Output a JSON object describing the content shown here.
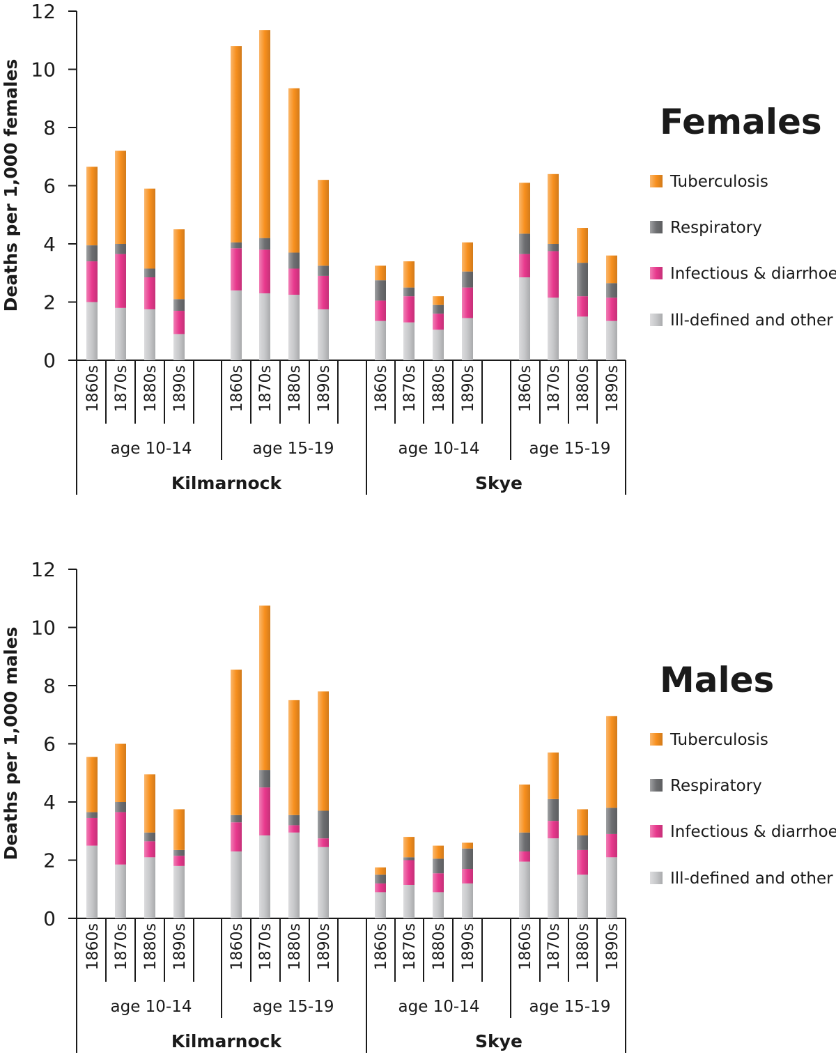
{
  "colors": {
    "Tuberculosis": "#f7901e",
    "Respiratory": "#6d6e71",
    "Infectious & diarrhoea": "#e8398d",
    "Ill-defined and other": "#c7c8ca"
  },
  "chart_data": [
    {
      "type": "bar",
      "stacked": true,
      "title": "Females",
      "ylabel": "Deaths per 1,000 females",
      "ylim": [
        0,
        12
      ],
      "yticks": [
        0,
        2,
        4,
        6,
        8,
        10,
        12
      ],
      "grid": false,
      "legend": "right",
      "regions": [
        {
          "name": "Kilmarnock",
          "groups": [
            {
              "name": "age 10-14",
              "decades": [
                "1860s",
                "1870s",
                "1880s",
                "1890s"
              ]
            },
            {
              "name": "age 15-19",
              "decades": [
                "1860s",
                "1870s",
                "1880s",
                "1890s"
              ]
            }
          ]
        },
        {
          "name": "Skye",
          "groups": [
            {
              "name": "age 10-14",
              "decades": [
                "1860s",
                "1870s",
                "1880s",
                "1890s"
              ]
            },
            {
              "name": "age 15-19",
              "decades": [
                "1860s",
                "1870s",
                "1880s",
                "1890s"
              ]
            }
          ]
        }
      ],
      "series": [
        {
          "name": "Ill-defined and other",
          "values": [
            2.0,
            1.8,
            1.75,
            0.9,
            2.4,
            2.3,
            2.25,
            1.75,
            1.35,
            1.3,
            1.05,
            1.45,
            2.85,
            2.15,
            1.5,
            1.35
          ]
        },
        {
          "name": "Infectious & diarrhoea",
          "values": [
            1.4,
            1.85,
            1.1,
            0.8,
            1.45,
            1.5,
            0.9,
            1.15,
            0.7,
            0.9,
            0.55,
            1.05,
            0.8,
            1.6,
            0.7,
            0.8
          ]
        },
        {
          "name": "Respiratory",
          "values": [
            0.55,
            0.35,
            0.3,
            0.4,
            0.2,
            0.4,
            0.55,
            0.35,
            0.7,
            0.3,
            0.3,
            0.55,
            0.7,
            0.25,
            1.15,
            0.5
          ]
        },
        {
          "name": "Tuberculosis",
          "values": [
            2.7,
            3.2,
            2.75,
            2.4,
            6.75,
            7.15,
            5.65,
            2.95,
            0.5,
            0.9,
            0.3,
            1.0,
            1.75,
            2.4,
            1.2,
            0.95
          ]
        }
      ]
    },
    {
      "type": "bar",
      "stacked": true,
      "title": "Males",
      "ylabel": "Deaths per 1,000 males",
      "ylim": [
        0,
        12
      ],
      "yticks": [
        0,
        2,
        4,
        6,
        8,
        10,
        12
      ],
      "grid": false,
      "legend": "right",
      "regions": [
        {
          "name": "Kilmarnock",
          "groups": [
            {
              "name": "age 10-14",
              "decades": [
                "1860s",
                "1870s",
                "1880s",
                "1890s"
              ]
            },
            {
              "name": "age 15-19",
              "decades": [
                "1860s",
                "1870s",
                "1880s",
                "1890s"
              ]
            }
          ]
        },
        {
          "name": "Skye",
          "groups": [
            {
              "name": "age 10-14",
              "decades": [
                "1860s",
                "1870s",
                "1880s",
                "1890s"
              ]
            },
            {
              "name": "age 15-19",
              "decades": [
                "1860s",
                "1870s",
                "1880s",
                "1890s"
              ]
            }
          ]
        }
      ],
      "series": [
        {
          "name": "Ill-defined and other",
          "values": [
            2.5,
            1.85,
            2.1,
            1.8,
            2.3,
            2.85,
            2.95,
            2.45,
            0.9,
            1.15,
            0.9,
            1.2,
            1.95,
            2.75,
            1.5,
            2.1
          ]
        },
        {
          "name": "Infectious & diarrhoea",
          "values": [
            0.95,
            1.8,
            0.55,
            0.35,
            1.0,
            1.65,
            0.25,
            0.3,
            0.3,
            0.85,
            0.65,
            0.5,
            0.35,
            0.6,
            0.85,
            0.8
          ]
        },
        {
          "name": "Respiratory",
          "values": [
            0.2,
            0.35,
            0.3,
            0.2,
            0.25,
            0.6,
            0.35,
            0.95,
            0.3,
            0.1,
            0.5,
            0.7,
            0.65,
            0.75,
            0.5,
            0.9
          ]
        },
        {
          "name": "Tuberculosis",
          "values": [
            1.9,
            2.0,
            2.0,
            1.4,
            5.0,
            5.65,
            3.95,
            4.1,
            0.25,
            0.7,
            0.45,
            0.2,
            1.65,
            1.6,
            0.9,
            3.15
          ]
        }
      ]
    }
  ],
  "legend_items": [
    "Tuberculosis",
    "Respiratory",
    "Infectious & diarrhoea",
    "Ill-defined and other"
  ]
}
